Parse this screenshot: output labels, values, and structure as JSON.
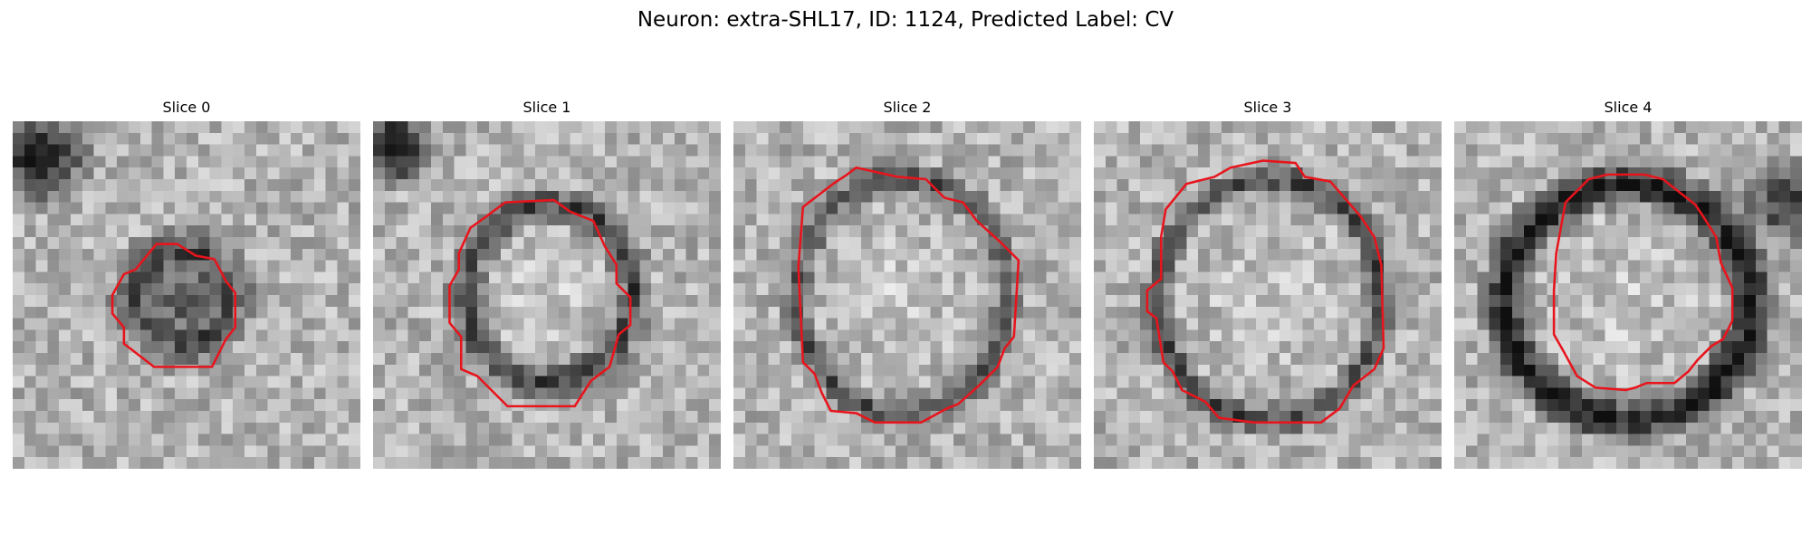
{
  "figure": {
    "title": "Neuron: extra-SHL17, ID: 1124, Predicted Label: CV"
  },
  "panels": [
    {
      "title": "Slice 0"
    },
    {
      "title": "Slice 1"
    },
    {
      "title": "Slice 2"
    },
    {
      "title": "Slice 3"
    },
    {
      "title": "Slice 4"
    }
  ],
  "colors": {
    "contour": "#e8141c",
    "background": "#ffffff"
  }
}
